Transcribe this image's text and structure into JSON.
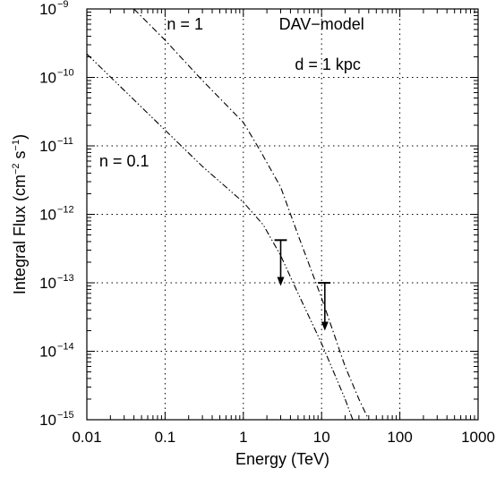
{
  "chart_data": {
    "type": "line",
    "xlabel": "Energy (TeV)",
    "ylabel_base": "Integral Flux (cm",
    "ylabel_sup1": "−2",
    "ylabel_mid": " s",
    "ylabel_sup2": "−1",
    "ylabel_end": ")",
    "x_scale": "log",
    "y_scale": "log",
    "xlim": [
      0.01,
      1000
    ],
    "ylim": [
      1e-15,
      1e-09
    ],
    "grid": true,
    "x_ticks": [
      {
        "value": 0.01,
        "label": "0.01"
      },
      {
        "value": 0.1,
        "label": "0.1"
      },
      {
        "value": 1,
        "label": "1"
      },
      {
        "value": 10,
        "label": "10"
      },
      {
        "value": 100,
        "label": "100"
      },
      {
        "value": 1000,
        "label": "1000"
      }
    ],
    "y_ticks": [
      {
        "value": 1e-15,
        "base": "10",
        "exp": "−15"
      },
      {
        "value": 1e-14,
        "base": "10",
        "exp": "−14"
      },
      {
        "value": 1e-13,
        "base": "10",
        "exp": "−13"
      },
      {
        "value": 1e-12,
        "base": "10",
        "exp": "−12"
      },
      {
        "value": 1e-11,
        "base": "10",
        "exp": "−11"
      },
      {
        "value": 1e-10,
        "base": "10",
        "exp": "−10"
      },
      {
        "value": 1e-09,
        "base": "10",
        "exp": "−9"
      }
    ],
    "series": [
      {
        "name": "n = 1",
        "dash": "dashdot",
        "points": [
          [
            0.04,
            1e-09
          ],
          [
            0.1,
            3.5e-10
          ],
          [
            0.3,
            9e-11
          ],
          [
            1.0,
            2.2e-11
          ],
          [
            1.6,
            9e-12
          ],
          [
            3,
            2.5e-12
          ],
          [
            5,
            5e-13
          ],
          [
            10,
            6e-14
          ],
          [
            20,
            6e-15
          ],
          [
            30,
            2e-15
          ],
          [
            40,
            1e-15
          ]
        ]
      },
      {
        "name": "n = 0.1",
        "dash": "dashdotdot",
        "points": [
          [
            0.01,
            2.2e-10
          ],
          [
            0.1,
            1.7e-11
          ],
          [
            0.3,
            5e-12
          ],
          [
            1.0,
            1.5e-12
          ],
          [
            1.8,
            7e-13
          ],
          [
            3,
            2.5e-13
          ],
          [
            5,
            7e-14
          ],
          [
            10,
            1.3e-14
          ],
          [
            20,
            2e-15
          ],
          [
            25,
            1e-15
          ]
        ]
      }
    ],
    "upper_limits": [
      {
        "x": 3.0,
        "y": 4.2e-13,
        "x_low": 2.5,
        "x_high": 3.6,
        "arrow_to": 9e-14
      },
      {
        "x": 11.0,
        "y": 1e-13,
        "x_low": 9.0,
        "x_high": 13.0,
        "arrow_to": 2e-14
      }
    ],
    "annotations": [
      {
        "text": "n = 1",
        "x": 0.18,
        "y": 5e-10
      },
      {
        "text": "DAV−model",
        "x": 10,
        "y": 5e-10
      },
      {
        "text": "d = 1 kpc",
        "x": 12,
        "y": 1.3e-10
      },
      {
        "text": "n = 0.1",
        "x": 0.03,
        "y": 5e-12
      }
    ]
  }
}
